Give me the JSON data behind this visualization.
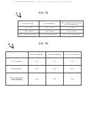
{
  "background_color": "#ffffff",
  "header_text": "Patent Application Publication     Sep. 13, 2012   Sheet 6 of 8    US 2012/0234941 A1",
  "fig7a_label": "FIG. 7A",
  "fig7b_label": "FIG. 7B",
  "table1": {
    "headers": [
      "LVT POWER (B)",
      "STD POWER (B)",
      "MULTI-THRESHOLD VOLTAGE\nFAMILY POWER (B)"
    ],
    "rows": [
      [
        "~1.0 - CELLS",
        "~1.0 - CELLS",
        "~1.0 - CELLS"
      ],
      [
        "~0.8 - CELLS",
        "~0.8 - CELLS",
        "~0.8 - CELLS"
      ],
      [
        "N/A - LEAKAGE/POWER",
        "N/A - LEAKAGE/POWER",
        "N/A - LEAKAGE/POWER"
      ]
    ]
  },
  "table2": {
    "headers": [
      "TOTAL POWER (B)",
      "ACTIVE POWER (B)",
      "LEAKAGE POWER (B)"
    ],
    "col0_rows": [
      "FAST CORNER",
      "SLOW CORNER",
      "MULTI-THRESHOLD\nVOLTAGE FAMILY\nFAST CORNER"
    ],
    "data_rows": [
      [
        "~1.23",
        "~0.5",
        "~1.23"
      ],
      [
        "~1.23",
        "~0.5",
        "~1.23"
      ],
      [
        "~1.23",
        "~0.5",
        "~1.23"
      ]
    ]
  },
  "arrow_color": "#000000",
  "table_line_color": "#000000",
  "text_color": "#000000",
  "header_font_size": 1.5,
  "label_font_size": 2.5,
  "cell_font_size": 1.5
}
